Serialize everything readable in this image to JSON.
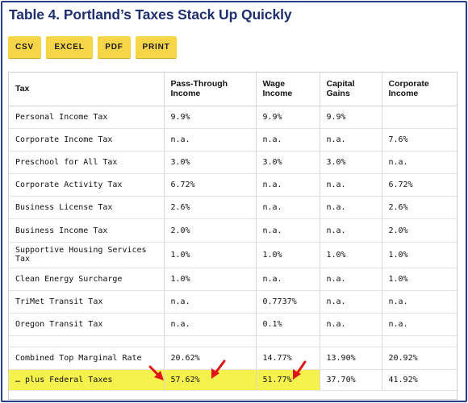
{
  "title": "Table 4. Portland’s Taxes Stack Up Quickly",
  "buttons": {
    "csv": "CSV",
    "excel": "EXCEL",
    "pdf": "PDF",
    "print": "PRINT"
  },
  "table": {
    "headers": [
      "Tax",
      "Pass-Through Income",
      "Wage Income",
      "Capital Gains",
      "Corporate Income"
    ],
    "rows": [
      [
        "Personal Income Tax",
        "9.9%",
        "9.9%",
        "9.9%",
        ""
      ],
      [
        "Corporate Income Tax",
        "n.a.",
        "n.a.",
        "n.a.",
        "7.6%"
      ],
      [
        "Preschool for All Tax",
        "3.0%",
        "3.0%",
        "3.0%",
        "n.a."
      ],
      [
        "Corporate Activity Tax",
        "6.72%",
        "n.a.",
        "n.a.",
        "6.72%"
      ],
      [
        "Business License Tax",
        "2.6%",
        "n.a.",
        "n.a.",
        "2.6%"
      ],
      [
        "Business Income Tax",
        "2.0%",
        "n.a.",
        "n.a.",
        "2.0%"
      ],
      [
        "Supportive Housing Services Tax",
        "1.0%",
        "1.0%",
        "1.0%",
        "1.0%"
      ],
      [
        "Clean Energy Surcharge",
        "1.0%",
        "n.a.",
        "n.a.",
        "1.0%"
      ],
      [
        "TriMet Transit Tax",
        "n.a.",
        "0.7737%",
        "n.a.",
        "n.a."
      ],
      [
        "Oregon Transit Tax",
        "n.a.",
        "0.1%",
        "n.a.",
        "n.a."
      ]
    ],
    "combined": [
      "Combined Top Marginal Rate",
      "20.62%",
      "14.77%",
      "13.90%",
      "20.92%"
    ],
    "federal": [
      "… plus Federal Taxes",
      "57.62%",
      "51.77%",
      "37.70%",
      "41.92%"
    ]
  },
  "colors": {
    "highlight": "#f6f24d",
    "arrow": "#e0141b",
    "title": "#1f2f6e",
    "button": "#f7d548"
  }
}
